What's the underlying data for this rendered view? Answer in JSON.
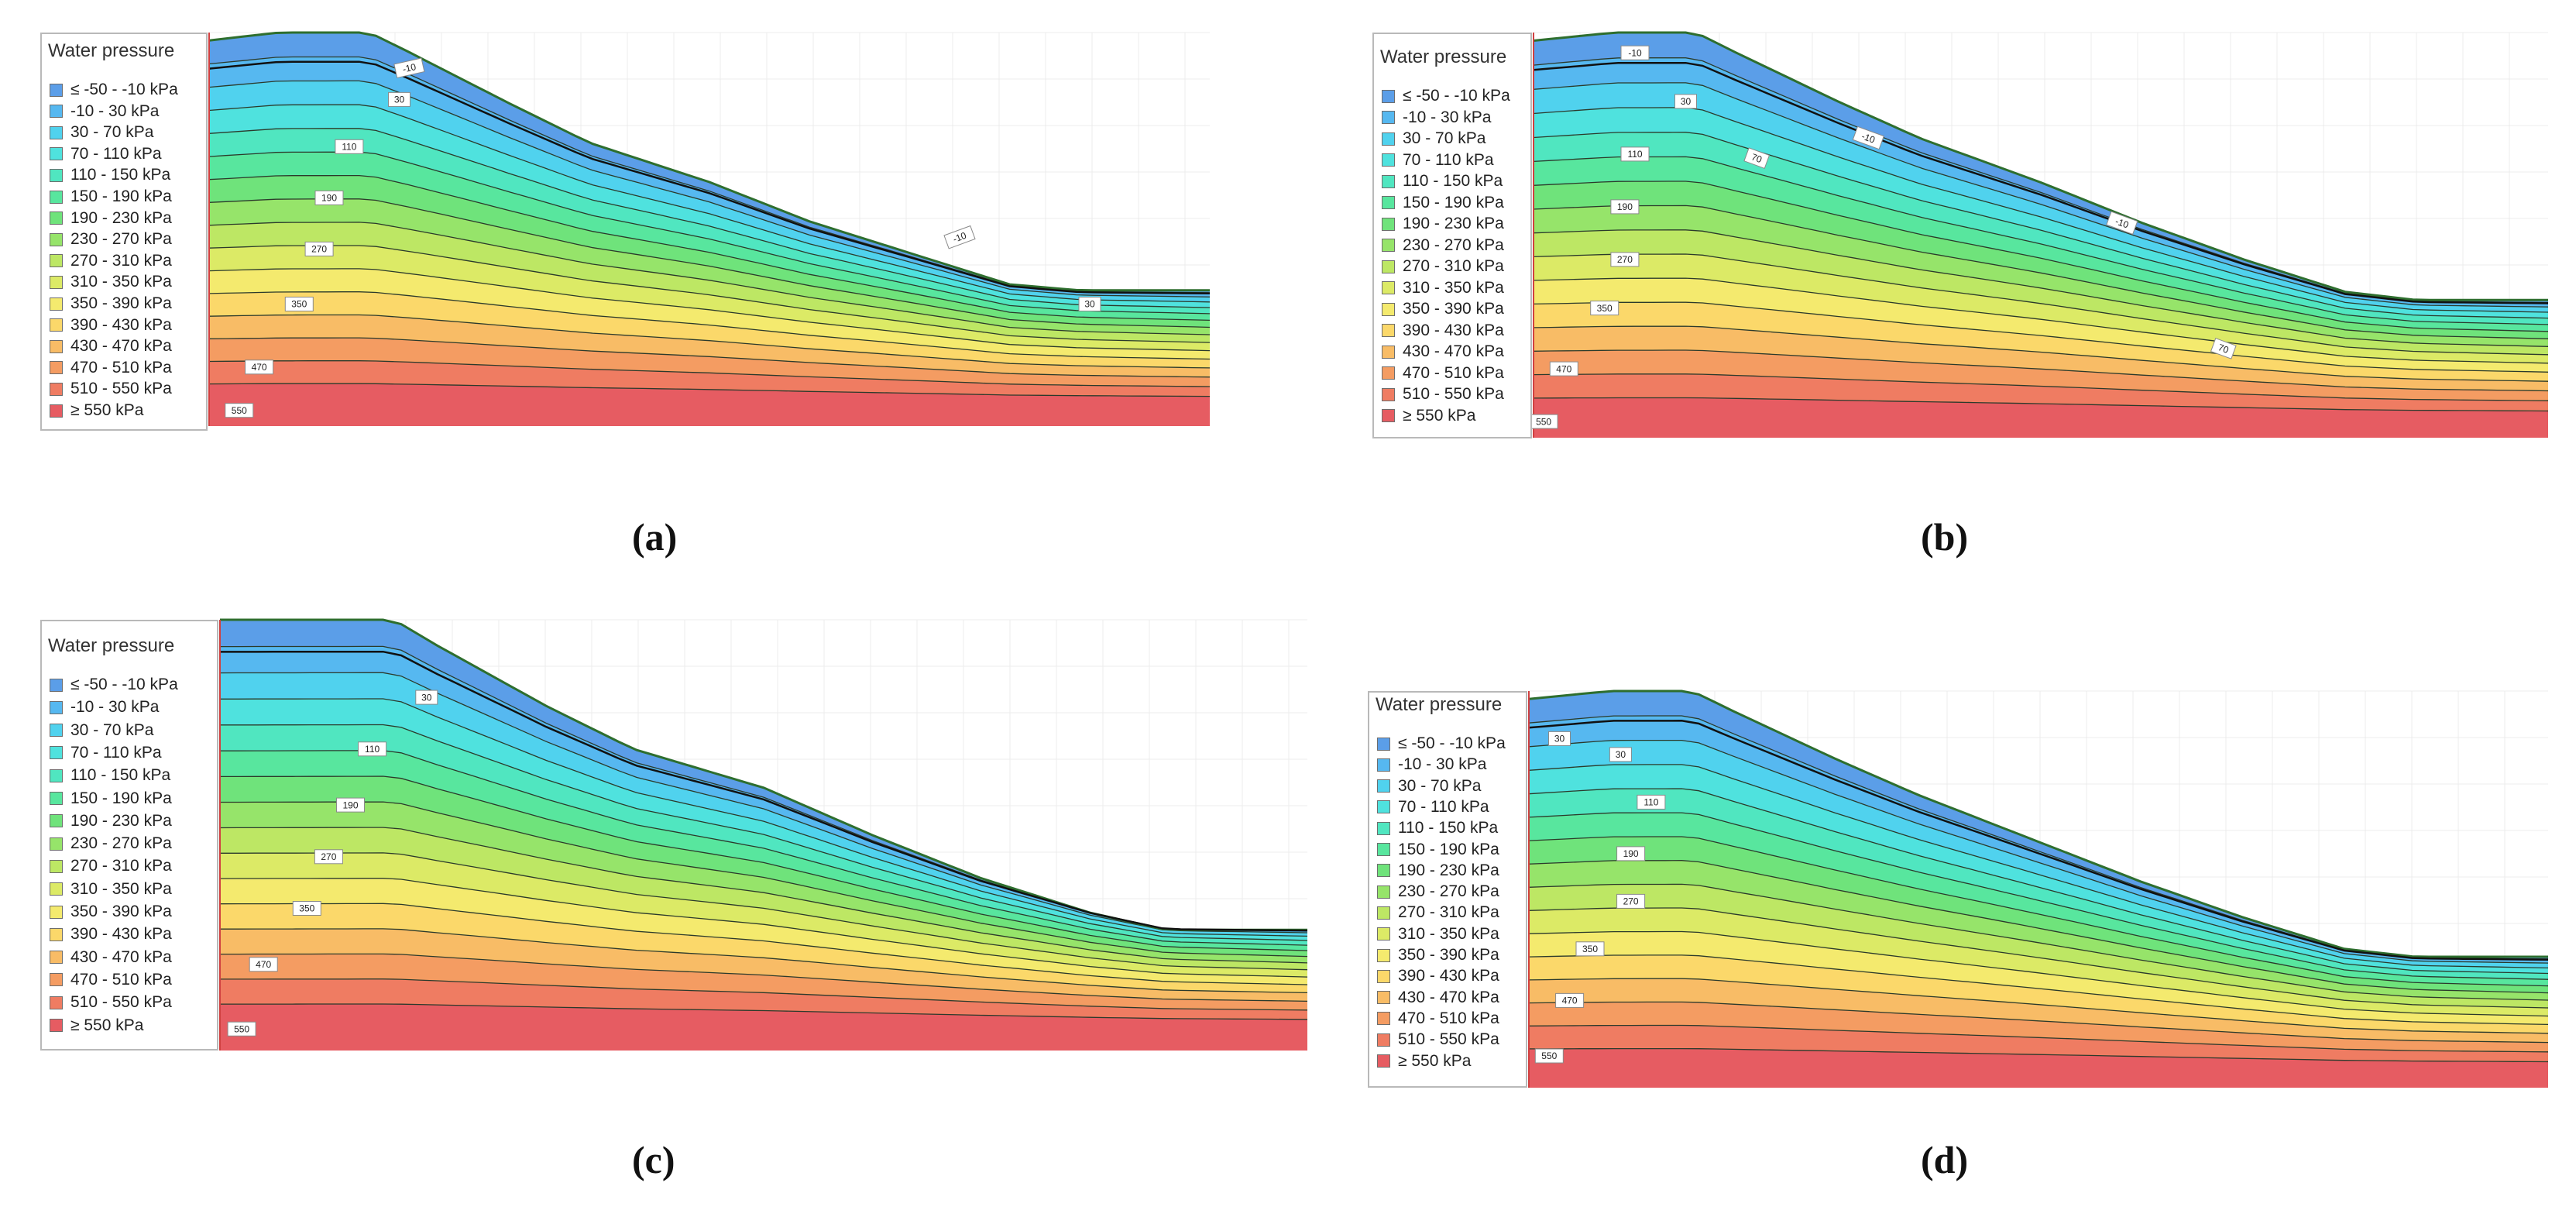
{
  "figure": {
    "legend": {
      "title": "Water pressure",
      "items": [
        {
          "label": "≤ -50 - -10 kPa",
          "color": "#5b9ee8"
        },
        {
          "label": "-10 - 30 kPa",
          "color": "#56b8f0"
        },
        {
          "label": "30 - 70 kPa",
          "color": "#50d2ee"
        },
        {
          "label": "70 - 110 kPa",
          "color": "#4fe2de"
        },
        {
          "label": "110 - 150 kPa",
          "color": "#50e6c0"
        },
        {
          "label": "150 - 190 kPa",
          "color": "#58e69e"
        },
        {
          "label": "190 - 230 kPa",
          "color": "#6fe37b"
        },
        {
          "label": "230 - 270 kPa",
          "color": "#96e46a"
        },
        {
          "label": "270 - 310 kPa",
          "color": "#bde764"
        },
        {
          "label": "310 - 350 kPa",
          "color": "#dcea66"
        },
        {
          "label": "350 - 390 kPa",
          "color": "#f4ea6e"
        },
        {
          "label": "390 - 430 kPa",
          "color": "#fbd86a"
        },
        {
          "label": "430 - 470 kPa",
          "color": "#f8bc66"
        },
        {
          "label": "470 - 510 kPa",
          "color": "#f49c62"
        },
        {
          "label": "510 - 550 kPa",
          "color": "#ef7c62"
        },
        {
          "label": "≥ 550 kPa",
          "color": "#e65c62"
        }
      ]
    }
  },
  "chart_data": [
    {
      "type": "heatmap",
      "subplot": "a",
      "caption": "(a)",
      "legend_title": "Water pressure",
      "legend_position": "top-left",
      "contour_labels": [
        {
          "value": "-10"
        },
        {
          "value": "30"
        },
        {
          "value": "110"
        },
        {
          "value": "190"
        },
        {
          "value": "270"
        },
        {
          "value": "350"
        },
        {
          "value": "470"
        },
        {
          "value": "550"
        },
        {
          "value": "-10"
        },
        {
          "value": "30"
        }
      ]
    },
    {
      "type": "heatmap",
      "subplot": "b",
      "caption": "(b)",
      "legend_title": "Water pressure",
      "legend_position": "top-left",
      "contour_labels": [
        {
          "value": "-10"
        },
        {
          "value": "30"
        },
        {
          "value": "110"
        },
        {
          "value": "70"
        },
        {
          "value": "-10"
        },
        {
          "value": "190"
        },
        {
          "value": "270"
        },
        {
          "value": "-10"
        },
        {
          "value": "350"
        },
        {
          "value": "470"
        },
        {
          "value": "70"
        },
        {
          "value": "550"
        }
      ]
    },
    {
      "type": "heatmap",
      "subplot": "c",
      "caption": "(c)",
      "legend_title": "Water pressure",
      "legend_position": "top-left",
      "contour_labels": [
        {
          "value": "30"
        },
        {
          "value": "110"
        },
        {
          "value": "190"
        },
        {
          "value": "270"
        },
        {
          "value": "350"
        },
        {
          "value": "470"
        },
        {
          "value": "550"
        }
      ]
    },
    {
      "type": "heatmap",
      "subplot": "d",
      "caption": "(d)",
      "legend_title": "Water pressure",
      "legend_position": "top-left",
      "contour_labels": [
        {
          "value": "30"
        },
        {
          "value": "30"
        },
        {
          "value": "110"
        },
        {
          "value": "190"
        },
        {
          "value": "270"
        },
        {
          "value": "350"
        },
        {
          "value": "470"
        },
        {
          "value": "550"
        }
      ]
    }
  ]
}
